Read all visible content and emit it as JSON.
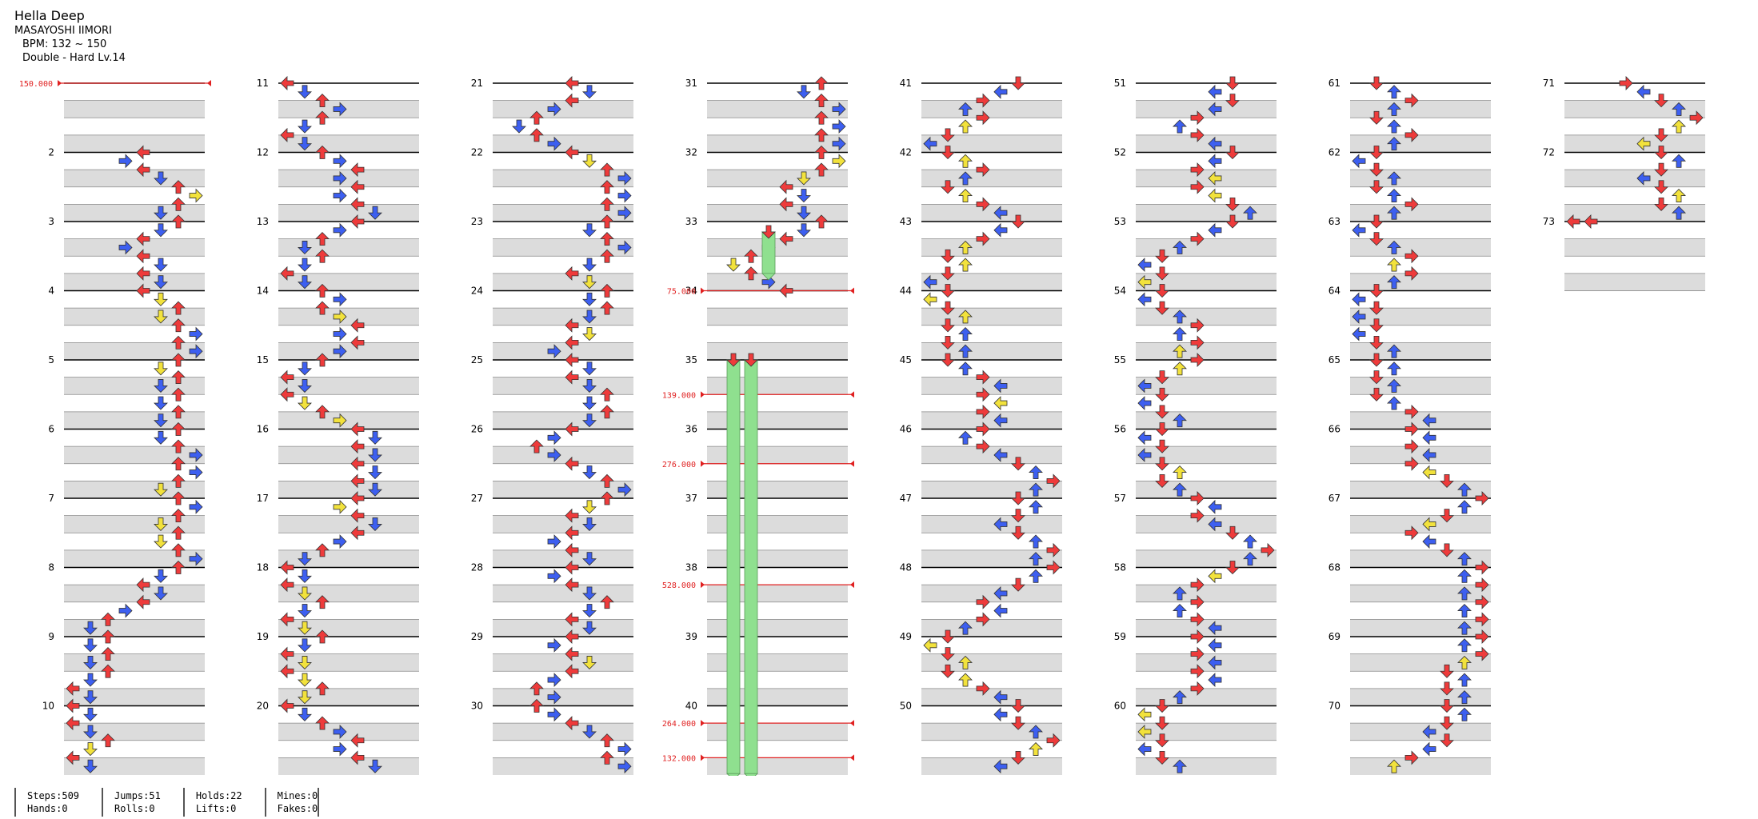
{
  "song": {
    "title": "Hella Deep",
    "artist": "MASAYOSHI IIMORI",
    "bpm": "BPM: 132 ~ 150",
    "difficulty": "Double - Hard Lv.14"
  },
  "bpm_changes": [
    {
      "measure": 1,
      "label": "150.000"
    },
    {
      "measure": 34,
      "label": "75.000"
    },
    {
      "measure": 35.5,
      "label": "139.000"
    },
    {
      "measure": 36.5,
      "label": "276.000"
    },
    {
      "measure": 38.25,
      "label": "528.000"
    },
    {
      "measure": 40.25,
      "label": "264.000"
    },
    {
      "measure": 40.75,
      "label": "132.000"
    }
  ],
  "stats": {
    "steps": "Steps:509",
    "hands": "Hands:0",
    "jumps": "Jumps:51",
    "rolls": "Rolls:0",
    "holds": "Holds:22",
    "lifts": "Lifts:0",
    "mines": "Mines:0",
    "fakes": "Fakes:0"
  },
  "chart_data": {
    "type": "table",
    "measures": 73,
    "measure_labels": [
      "2",
      "3",
      "4",
      "5",
      "6",
      "7",
      "8",
      "9",
      "10",
      "11",
      "12",
      "13",
      "14",
      "15",
      "16",
      "17",
      "18",
      "19",
      "20",
      "21",
      "22",
      "23",
      "24",
      "25",
      "26",
      "27",
      "28",
      "29",
      "30",
      "31",
      "32",
      "33",
      "34",
      "35",
      "36",
      "37",
      "38",
      "39",
      "40",
      "41",
      "42",
      "43",
      "44",
      "45",
      "46",
      "47",
      "48",
      "49",
      "50",
      "51",
      "52",
      "53",
      "54",
      "55",
      "56",
      "57",
      "58",
      "59",
      "60",
      "61",
      "62",
      "63",
      "64",
      "65",
      "66",
      "67",
      "68",
      "69",
      "70",
      "71",
      "72",
      "73"
    ],
    "lanes": [
      "left",
      "down",
      "up",
      "right",
      "left",
      "down",
      "up",
      "right"
    ],
    "colors": {
      "red": "#ee3b3b",
      "blue": "#3d5ff0",
      "yellow": "#f2e23c",
      "purple": "#c040f0",
      "hold": "#8fe08f",
      "bpm_line": "#e02020"
    }
  }
}
